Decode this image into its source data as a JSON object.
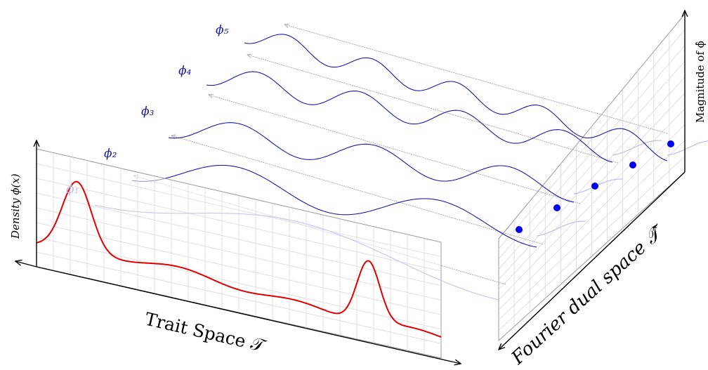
{
  "labels": {
    "trait_space": "Trait Space 𝒯",
    "fourier_space": "Fourier dual space 𝒯̂",
    "density": "Density ϕ(x)",
    "magnitude": "Magnitude of ϕ̂",
    "phi1": "ϕ₁",
    "phi2": "ϕ₂",
    "phi3": "ϕ₃",
    "phi4": "ϕ₄",
    "phi5": "ϕ₅"
  },
  "colors": {
    "density_curve": "#e00000",
    "basis_wave": "#1a1aaa",
    "basis_wave_faded": "#b8b8f0",
    "magnitude_point": "#0000ee",
    "grid": "#d8d8d8",
    "axis": "#000000",
    "guide_arrow": "#aaaaaa"
  }
}
